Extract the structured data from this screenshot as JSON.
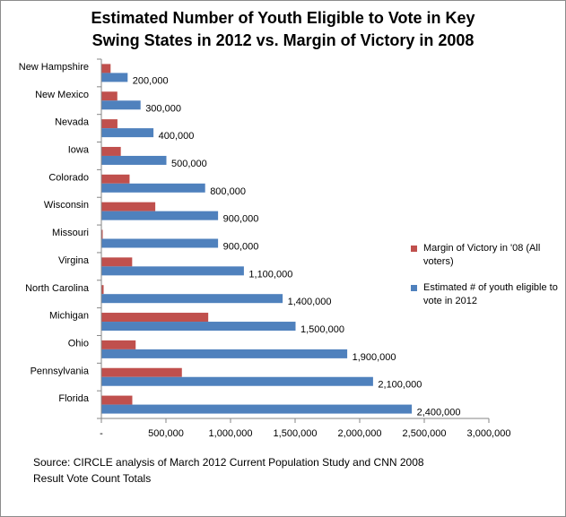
{
  "title_line1": "Estimated Number of Youth Eligible to Vote in Key",
  "title_line2": "Swing States in 2012 vs. Margin of Victory in 2008",
  "source_line1": "Source: CIRCLE analysis of March 2012  Current Population Study and CNN 2008",
  "source_line2": "Result Vote Count Totals",
  "colors": {
    "margin": "#c0504d",
    "youth": "#4f81bd"
  },
  "chart_data": {
    "type": "bar",
    "orientation": "horizontal",
    "categories": [
      "New Hampshire",
      "New Mexico",
      "Nevada",
      "Iowa",
      "Colorado",
      "Wisconsin",
      "Missouri",
      "Virgina",
      "North Carolina",
      "Michigan",
      "Ohio",
      "Pennsylvania",
      "Florida"
    ],
    "series": [
      {
        "name": "Margin of Victory in '08 (All voters)",
        "values": [
          68000,
          120000,
          121000,
          147000,
          215000,
          414000,
          4000,
          235000,
          14000,
          824000,
          262000,
          620000,
          236000
        ],
        "color": "#c0504d"
      },
      {
        "name": "Estimated # of youth eligible to vote in 2012",
        "values": [
          200000,
          300000,
          400000,
          500000,
          800000,
          900000,
          900000,
          1100000,
          1400000,
          1500000,
          1900000,
          2100000,
          2400000
        ],
        "color": "#4f81bd"
      }
    ],
    "data_labels": [
      "200,000",
      "300,000",
      "400,000",
      "500,000",
      "800,000",
      "900,000",
      "900,000",
      "1,100,000",
      "1,400,000",
      "1,500,000",
      "1,900,000",
      "2,100,000",
      "2,400,000"
    ],
    "x_ticks": [
      0,
      500000,
      1000000,
      1500000,
      2000000,
      2500000,
      3000000
    ],
    "x_tick_labels": [
      "-",
      "500,000",
      "1,000,000",
      "1,500,000",
      "2,000,000",
      "2,500,000",
      "3,000,000"
    ],
    "xlim": [
      0,
      3000000
    ],
    "grid": false,
    "legend_position": "right"
  }
}
